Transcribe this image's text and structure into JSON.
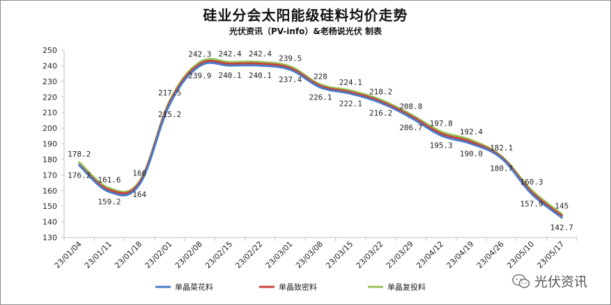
{
  "chart_data": {
    "type": "line",
    "title": "硅业分会太阳能级硅料均价走势",
    "subtitle": "光伏资讯（PV-info）&老杨说光伏 制表",
    "categories": [
      "23/01/04",
      "23/01/11",
      "23/01/18",
      "23/02/01",
      "23/02/08",
      "23/02/15",
      "23/02/22",
      "23/03/01",
      "23/03/08",
      "23/03/15",
      "23/03/22",
      "23/03/29",
      "23/04/12",
      "23/04/19",
      "23/04/26",
      "23/05/10",
      "23/05/17"
    ],
    "ylim": [
      130,
      250
    ],
    "yticks": [
      130,
      140,
      150,
      160,
      170,
      180,
      190,
      200,
      210,
      220,
      230,
      240,
      250
    ],
    "series": [
      {
        "name": "单晶菜花料",
        "color": "#4a7bc8",
        "values": [
          176.2,
          159.2,
          164,
          215.2,
          239.9,
          240.1,
          240.1,
          237.4,
          226.1,
          222.1,
          216.2,
          206.7,
          195.3,
          190.0,
          180.7,
          157.9,
          142.7
        ],
        "labels": [
          "176.2",
          "159.2",
          "164",
          "215.2",
          "239.9",
          "240.1",
          "240.1",
          "237.4",
          "226.1",
          "222.1",
          "216.2",
          "206.7",
          "195.3",
          "190.0",
          "180.7",
          "157.9",
          "142.7"
        ]
      },
      {
        "name": "单晶致密料",
        "color": "#c9413b",
        "values": [
          176.5,
          160.5,
          165.2,
          216.5,
          241.1,
          241.3,
          241.3,
          238.5,
          227.1,
          223.1,
          217.2,
          207.8,
          196.6,
          191.2,
          181.4,
          159.1,
          143.9
        ],
        "labels": []
      },
      {
        "name": "单晶复投料",
        "color": "#96c356",
        "values": [
          178.2,
          161.6,
          166,
          217.5,
          242.3,
          242.4,
          242.4,
          239.5,
          228,
          224.1,
          218.2,
          208.8,
          197.8,
          192.4,
          182.1,
          160.3,
          145
        ],
        "labels": [
          "178.2",
          "161.6",
          "166",
          "217.5",
          "242.3",
          "242.4",
          "242.4",
          "239.5",
          "228",
          "224.1",
          "218.2",
          "208.8",
          "197.8",
          "192.4",
          "182.1",
          "160.3",
          "145"
        ]
      }
    ],
    "legend_position": "bottom-center",
    "grid": false
  },
  "watermark": {
    "text": "光伏资讯",
    "icon": "wechat-icon"
  }
}
